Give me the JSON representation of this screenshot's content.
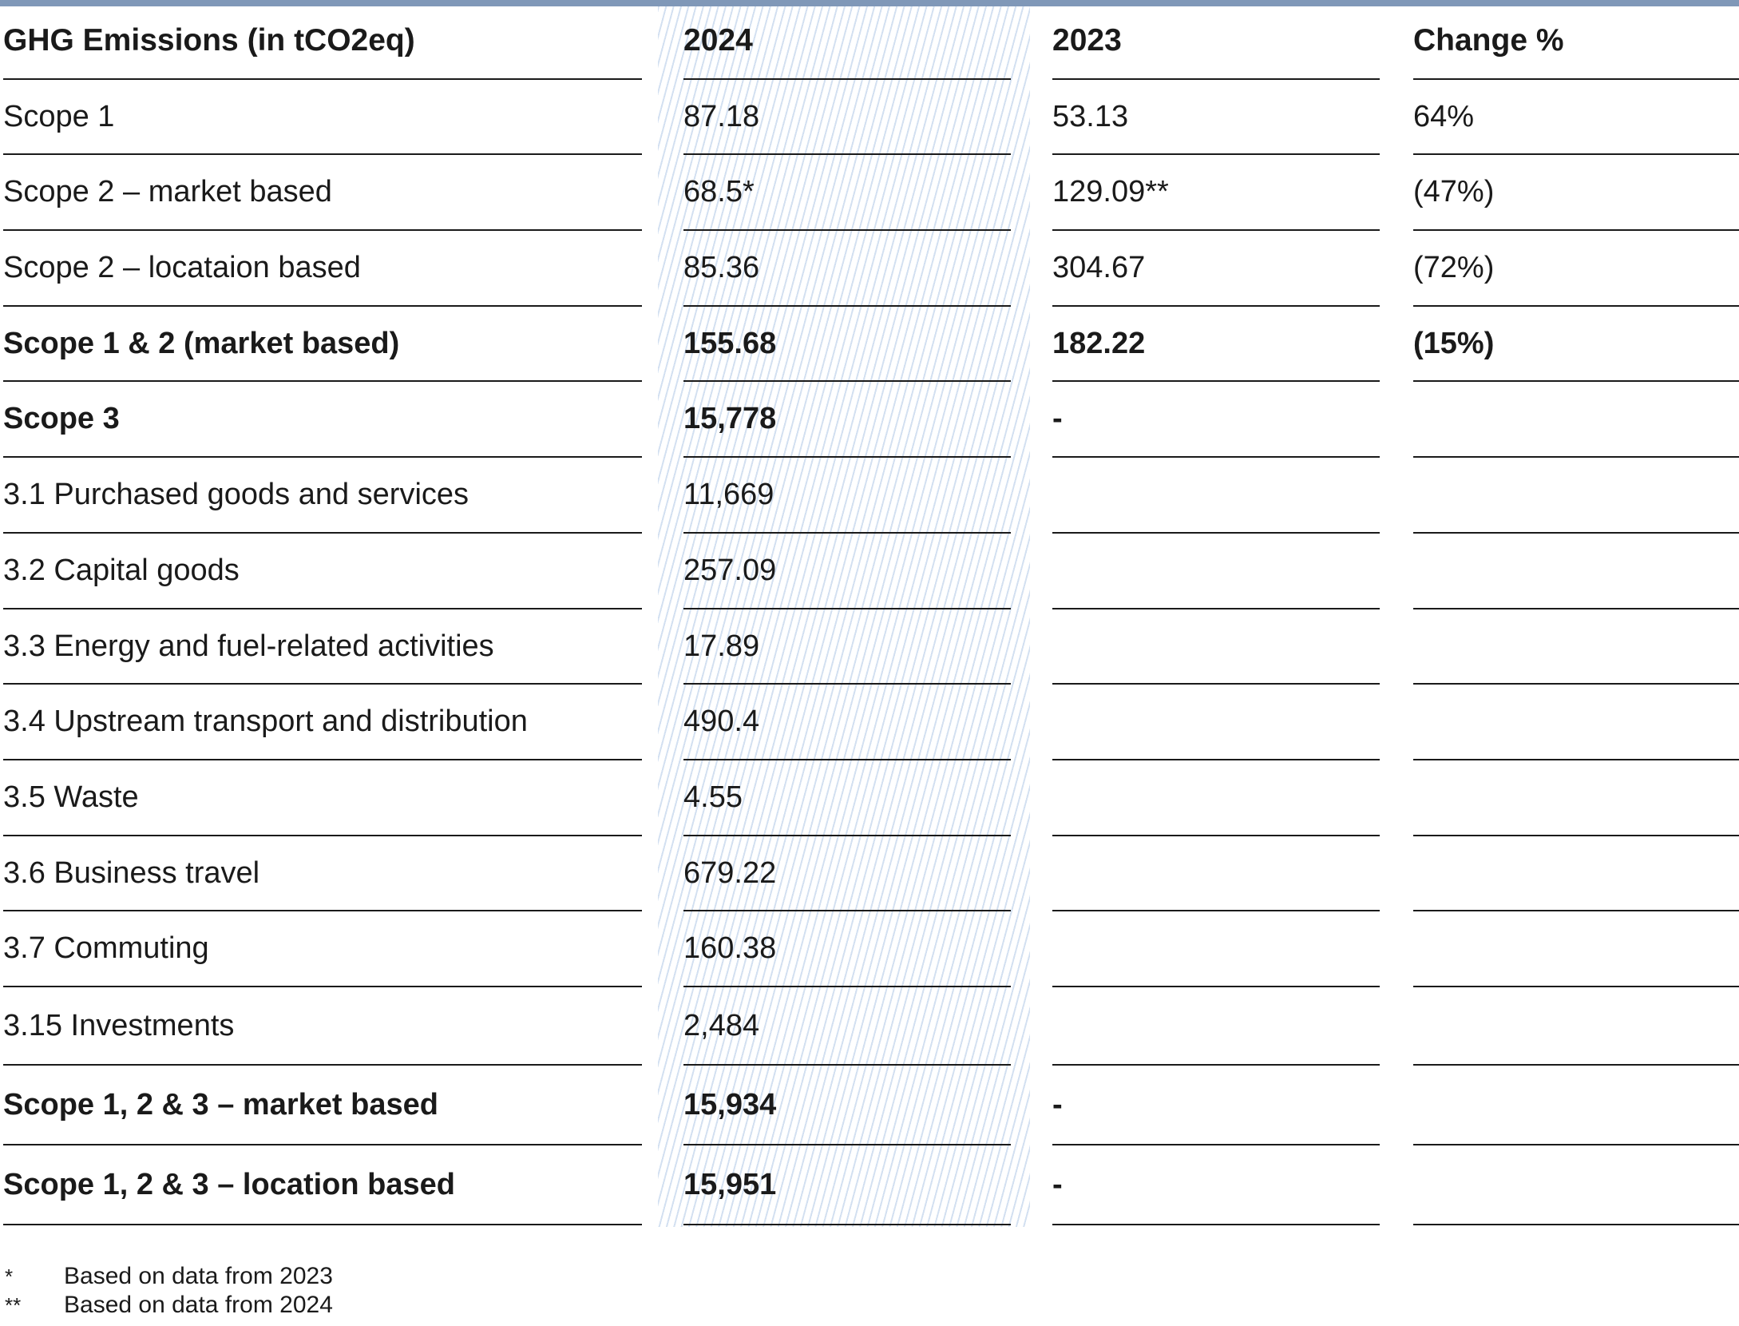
{
  "table": {
    "header": {
      "label": "GHG Emissions (in tCO2eq)",
      "y2024": "2024",
      "y2023": "2023",
      "change": "Change %"
    },
    "rows": [
      {
        "label": "Scope 1",
        "y2024": "87.18",
        "y2023": "53.13",
        "change": "64%"
      },
      {
        "label": "Scope 2 – market based",
        "y2024": "68.5*",
        "y2023": "129.09**",
        "change": "(47%)"
      },
      {
        "label": "Scope 2 – locataion based",
        "y2024": "85.36",
        "y2023": "304.67",
        "change": "(72%)"
      },
      {
        "label": "Scope 1 & 2 (market based)",
        "y2024": "155.68",
        "y2023": "182.22",
        "change": "(15%)"
      },
      {
        "label": "Scope 3",
        "y2024": "15,778",
        "y2023": "-",
        "change": ""
      },
      {
        "label": "3.1 Purchased goods and services",
        "y2024": "11,669",
        "y2023": "",
        "change": ""
      },
      {
        "label": "3.2 Capital goods",
        "y2024": "257.09",
        "y2023": "",
        "change": ""
      },
      {
        "label": "3.3 Energy and fuel-related activities",
        "y2024": "17.89",
        "y2023": "",
        "change": ""
      },
      {
        "label": "3.4 Upstream transport and distribution",
        "y2024": "490.4",
        "y2023": "",
        "change": ""
      },
      {
        "label": "3.5 Waste",
        "y2024": "4.55",
        "y2023": "",
        "change": ""
      },
      {
        "label": "3.6 Business travel",
        "y2024": "679.22",
        "y2023": "",
        "change": ""
      },
      {
        "label": "3.7 Commuting",
        "y2024": "160.38",
        "y2023": "",
        "change": ""
      },
      {
        "label": "3.15 Investments",
        "y2024": "2,484",
        "y2023": "",
        "change": ""
      },
      {
        "label": "Scope 1, 2 & 3 – market based",
        "y2024": "15,934",
        "y2023": "-",
        "change": ""
      },
      {
        "label": "Scope 1, 2 & 3 – location based",
        "y2024": "15,951",
        "y2023": "-",
        "change": ""
      }
    ]
  },
  "footnotes": [
    {
      "mark": "*",
      "text": "Based on data from 2023"
    },
    {
      "mark": "**",
      "text": "Based on data from 2024"
    }
  ],
  "colors": {
    "top_rule": "#8098b8",
    "hatch": "#c4d6ec",
    "text": "#1a1a1a"
  }
}
